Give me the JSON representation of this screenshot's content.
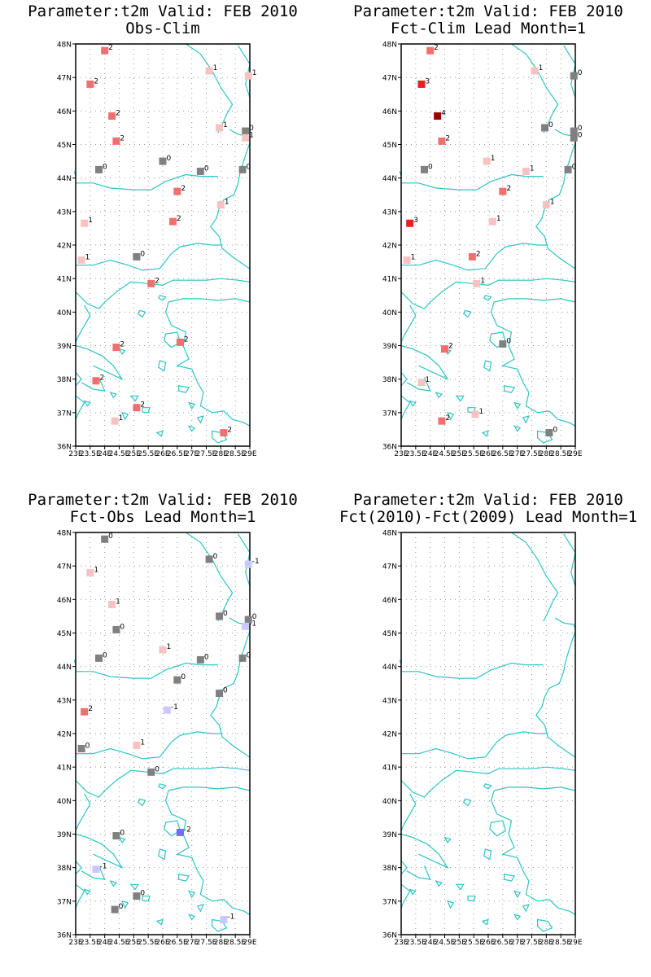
{
  "panels": [
    {
      "title1": "Parameter:t2m Valid: FEB 2010",
      "title2": "Obs-Clim",
      "stations": [
        {
          "lon": 24.0,
          "lat": 47.8,
          "val": 2
        },
        {
          "lon": 23.5,
          "lat": 46.8,
          "val": 2
        },
        {
          "lon": 24.25,
          "lat": 45.85,
          "val": 2
        },
        {
          "lon": 24.4,
          "lat": 45.1,
          "val": 2
        },
        {
          "lon": 23.8,
          "lat": 44.25,
          "val": 0
        },
        {
          "lon": 26.0,
          "lat": 44.5,
          "val": 0
        },
        {
          "lon": 27.6,
          "lat": 47.2,
          "val": 1
        },
        {
          "lon": 28.95,
          "lat": 47.05,
          "val": 1
        },
        {
          "lon": 27.95,
          "lat": 45.5,
          "val": 1
        },
        {
          "lon": 28.85,
          "lat": 45.4,
          "val": 0
        },
        {
          "lon": 28.85,
          "lat": 45.2,
          "val": 1
        },
        {
          "lon": 27.3,
          "lat": 44.2,
          "val": 0
        },
        {
          "lon": 28.75,
          "lat": 44.25,
          "val": 0
        },
        {
          "lon": 26.5,
          "lat": 43.6,
          "val": 2
        },
        {
          "lon": 28.0,
          "lat": 43.2,
          "val": 1
        },
        {
          "lon": 23.3,
          "lat": 42.65,
          "val": 1
        },
        {
          "lon": 26.35,
          "lat": 42.7,
          "val": 2
        },
        {
          "lon": 23.2,
          "lat": 41.55,
          "val": 1
        },
        {
          "lon": 25.1,
          "lat": 41.65,
          "val": 0
        },
        {
          "lon": 25.6,
          "lat": 40.85,
          "val": 2
        },
        {
          "lon": 24.4,
          "lat": 38.95,
          "val": 2
        },
        {
          "lon": 26.6,
          "lat": 39.1,
          "val": 2
        },
        {
          "lon": 23.7,
          "lat": 37.95,
          "val": 2
        },
        {
          "lon": 25.1,
          "lat": 37.15,
          "val": 2
        },
        {
          "lon": 24.35,
          "lat": 36.75,
          "val": 1
        },
        {
          "lon": 28.1,
          "lat": 36.4,
          "val": 2
        }
      ]
    },
    {
      "title1": "Parameter:t2m Valid: FEB 2010",
      "title2": "Fct-Clim Lead Month=1",
      "stations": [
        {
          "lon": 24.0,
          "lat": 47.8,
          "val": 2
        },
        {
          "lon": 23.7,
          "lat": 46.8,
          "val": 3
        },
        {
          "lon": 24.25,
          "lat": 45.85,
          "val": 4
        },
        {
          "lon": 24.4,
          "lat": 45.1,
          "val": 2
        },
        {
          "lon": 23.8,
          "lat": 44.25,
          "val": 0
        },
        {
          "lon": 25.95,
          "lat": 44.5,
          "val": 1
        },
        {
          "lon": 27.6,
          "lat": 47.2,
          "val": 1
        },
        {
          "lon": 28.95,
          "lat": 47.05,
          "val": 0
        },
        {
          "lon": 27.95,
          "lat": 45.5,
          "val": 0
        },
        {
          "lon": 28.95,
          "lat": 45.4,
          "val": 0
        },
        {
          "lon": 28.95,
          "lat": 45.2,
          "val": 0
        },
        {
          "lon": 27.3,
          "lat": 44.2,
          "val": 1
        },
        {
          "lon": 28.75,
          "lat": 44.25,
          "val": 0
        },
        {
          "lon": 26.5,
          "lat": 43.6,
          "val": 2
        },
        {
          "lon": 28.0,
          "lat": 43.2,
          "val": 1
        },
        {
          "lon": 23.3,
          "lat": 42.65,
          "val": 3
        },
        {
          "lon": 26.15,
          "lat": 42.7,
          "val": 1
        },
        {
          "lon": 23.2,
          "lat": 41.55,
          "val": 1
        },
        {
          "lon": 25.45,
          "lat": 41.65,
          "val": 2
        },
        {
          "lon": 25.6,
          "lat": 40.85,
          "val": 1
        },
        {
          "lon": 24.5,
          "lat": 38.9,
          "val": 2
        },
        {
          "lon": 26.5,
          "lat": 39.05,
          "val": 0
        },
        {
          "lon": 23.7,
          "lat": 37.9,
          "val": 1
        },
        {
          "lon": 24.4,
          "lat": 36.75,
          "val": 2
        },
        {
          "lon": 25.55,
          "lat": 36.95,
          "val": 1
        },
        {
          "lon": 28.1,
          "lat": 36.4,
          "val": 0
        }
      ]
    },
    {
      "title1": "Parameter:t2m Valid: FEB 2010",
      "title2": "Fct-Obs Lead Month=1",
      "stations": [
        {
          "lon": 24.0,
          "lat": 47.8,
          "val": 0
        },
        {
          "lon": 23.5,
          "lat": 46.8,
          "val": 1
        },
        {
          "lon": 24.25,
          "lat": 45.85,
          "val": 1
        },
        {
          "lon": 24.4,
          "lat": 45.1,
          "val": 0
        },
        {
          "lon": 23.8,
          "lat": 44.25,
          "val": 0
        },
        {
          "lon": 26.0,
          "lat": 44.5,
          "val": 1
        },
        {
          "lon": 27.6,
          "lat": 47.2,
          "val": 0
        },
        {
          "lon": 28.95,
          "lat": 47.05,
          "val": -1
        },
        {
          "lon": 27.95,
          "lat": 45.5,
          "val": 0
        },
        {
          "lon": 28.95,
          "lat": 45.4,
          "val": 0
        },
        {
          "lon": 28.85,
          "lat": 45.2,
          "val": -1
        },
        {
          "lon": 27.3,
          "lat": 44.2,
          "val": 0
        },
        {
          "lon": 28.75,
          "lat": 44.25,
          "val": 0
        },
        {
          "lon": 26.5,
          "lat": 43.6,
          "val": 0
        },
        {
          "lon": 27.95,
          "lat": 43.2,
          "val": 0
        },
        {
          "lon": 23.3,
          "lat": 42.65,
          "val": 2
        },
        {
          "lon": 26.15,
          "lat": 42.7,
          "val": -1
        },
        {
          "lon": 23.2,
          "lat": 41.55,
          "val": 0
        },
        {
          "lon": 25.1,
          "lat": 41.65,
          "val": 1
        },
        {
          "lon": 25.6,
          "lat": 40.85,
          "val": 0
        },
        {
          "lon": 24.4,
          "lat": 38.95,
          "val": 0
        },
        {
          "lon": 26.6,
          "lat": 39.05,
          "val": -2
        },
        {
          "lon": 23.7,
          "lat": 37.95,
          "val": -1
        },
        {
          "lon": 25.1,
          "lat": 37.15,
          "val": 0
        },
        {
          "lon": 24.35,
          "lat": 36.75,
          "val": 0
        },
        {
          "lon": 28.1,
          "lat": 36.45,
          "val": -1
        }
      ]
    },
    {
      "title1": "Parameter:t2m Valid: FEB 2010",
      "title2": "Fct(2010)-Fct(2009) Lead Month=1",
      "stations": []
    }
  ],
  "axes": {
    "y_labels": [
      "48N",
      "47N",
      "46N",
      "45N",
      "44N",
      "43N",
      "42N",
      "41N",
      "40N",
      "39N",
      "38N",
      "37N",
      "36N"
    ],
    "x_labels": [
      "23E",
      "23.5E",
      "24E",
      "24.5E",
      "25E",
      "25.5E",
      "26E",
      "26.5E",
      "27E",
      "27.5E",
      "28E",
      "28.5E",
      "29E"
    ]
  },
  "legend_colors": {
    "-2": "#6f6fff",
    "-1": "#c9c9ff",
    "0": "#808080",
    "1": "#f9c2c2",
    "2": "#f26f6f",
    "3": "#e81f1f",
    "4": "#a10000"
  },
  "coast_color": "#2ec4c4"
}
